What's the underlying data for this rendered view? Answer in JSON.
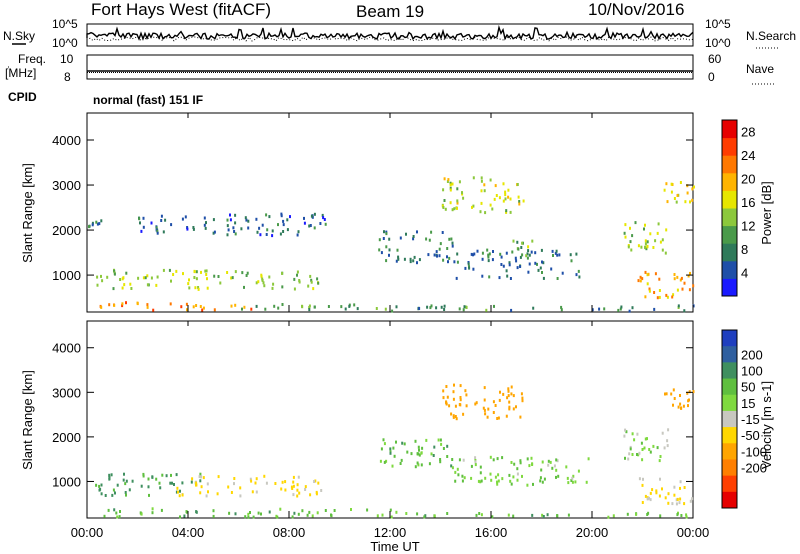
{
  "header": {
    "station": "Fort Hays West (fitACF)",
    "beam": "Beam 19",
    "date": "10/Nov/2016",
    "mode": "normal (fast) 151 IF"
  },
  "top_panels": {
    "nsky_label": "N.Sky",
    "nsearch_label": "N.Search",
    "noise_ticks_left": [
      "10^5",
      "10^0"
    ],
    "noise_ticks_right": [
      "10^5",
      "10^0"
    ],
    "freq_label": "Freq.",
    "freq_unit": "[MHz]",
    "freq_ticks": [
      "10",
      "8"
    ],
    "nave_label": "Nave",
    "nave_ticks": [
      "60",
      "0"
    ],
    "cpid_label": "CPID"
  },
  "chart_data": [
    {
      "type": "heatmap",
      "name": "power",
      "xlabel": "Time UT",
      "ylabel": "Slant Range [km]",
      "x_ticks": [
        "00:00",
        "04:00",
        "08:00",
        "12:00",
        "16:00",
        "20:00",
        "00:00"
      ],
      "xlim_hours": [
        0,
        24
      ],
      "y_ticks": [
        "1000",
        "2000",
        "3000",
        "4000"
      ],
      "ylim": [
        180,
        4600
      ],
      "colorbar": {
        "label": "Power [dB]",
        "ticks": [
          "4",
          "8",
          "12",
          "16",
          "20",
          "24",
          "28"
        ],
        "range": [
          0,
          30
        ],
        "colors": [
          "#1a1aff",
          "#1f4fa8",
          "#2f7a5a",
          "#4a9a4a",
          "#8cc83c",
          "#e6e600",
          "#ffb400",
          "#ff7800",
          "#ff3c00",
          "#e60000"
        ]
      },
      "regions": [
        {
          "t": [
            0.0,
            0.8
          ],
          "r": [
            2100,
            2250
          ],
          "level": 8
        },
        {
          "t": [
            0.3,
            9.2
          ],
          "r": [
            700,
            1150
          ],
          "level": 14
        },
        {
          "t": [
            0.5,
            6.5
          ],
          "r": [
            250,
            420
          ],
          "level": 22
        },
        {
          "t": [
            6.0,
            12.0
          ],
          "r": [
            250,
            380
          ],
          "level": 10
        },
        {
          "t": [
            12.0,
            24.0
          ],
          "r": [
            230,
            350
          ],
          "level": 9
        },
        {
          "t": [
            2.0,
            9.5
          ],
          "r": [
            1900,
            2400
          ],
          "level": 6
        },
        {
          "t": [
            11.5,
            14.5
          ],
          "r": [
            1300,
            2000
          ],
          "level": 7
        },
        {
          "t": [
            14.0,
            17.3
          ],
          "r": [
            2400,
            3200
          ],
          "level": 15
        },
        {
          "t": [
            14.5,
            19.5
          ],
          "r": [
            950,
            1600
          ],
          "level": 7
        },
        {
          "t": [
            16.8,
            17.6
          ],
          "r": [
            1400,
            1800
          ],
          "level": 12
        },
        {
          "t": [
            21.2,
            23.0
          ],
          "r": [
            1500,
            2200
          ],
          "level": 14
        },
        {
          "t": [
            22.8,
            24.0
          ],
          "r": [
            2600,
            3100
          ],
          "level": 16
        },
        {
          "t": [
            21.8,
            24.0
          ],
          "r": [
            500,
            1100
          ],
          "level": 20
        }
      ]
    },
    {
      "type": "heatmap",
      "name": "velocity",
      "xlabel": "Time UT",
      "ylabel": "Slant Range [km]",
      "x_ticks": [
        "00:00",
        "04:00",
        "08:00",
        "12:00",
        "16:00",
        "20:00",
        "00:00"
      ],
      "xlim_hours": [
        0,
        24
      ],
      "y_ticks": [
        "1000",
        "2000",
        "3000",
        "4000"
      ],
      "ylim": [
        180,
        4600
      ],
      "colorbar": {
        "label": "Velocity [m s-1]",
        "ticks": [
          "200",
          "100",
          "50",
          "15",
          "-15",
          "-50",
          "-100",
          "-200"
        ],
        "colors": [
          "#1f3fbf",
          "#2f5f9f",
          "#3f8f5f",
          "#5fbf3f",
          "#7fd93f",
          "#c8c8c0",
          "#ffd700",
          "#ffa500",
          "#ff7f00",
          "#ff3f00",
          "#e60000"
        ]
      },
      "regions": [
        {
          "t": [
            0.3,
            4.5
          ],
          "r": [
            700,
            1200
          ],
          "velocity": 60
        },
        {
          "t": [
            3.5,
            9.3
          ],
          "r": [
            700,
            1150
          ],
          "velocity": -60
        },
        {
          "t": [
            0.5,
            12.0
          ],
          "r": [
            230,
            420
          ],
          "velocity": 30
        },
        {
          "t": [
            12.0,
            24.0
          ],
          "r": [
            230,
            350
          ],
          "velocity": 25
        },
        {
          "t": [
            14.0,
            17.3
          ],
          "r": [
            2400,
            3200
          ],
          "velocity": -150
        },
        {
          "t": [
            14.5,
            20.0
          ],
          "r": [
            950,
            1600
          ],
          "velocity": 5
        },
        {
          "t": [
            11.5,
            14.5
          ],
          "r": [
            1300,
            2000
          ],
          "velocity": 30
        },
        {
          "t": [
            21.2,
            23.0
          ],
          "r": [
            1500,
            2200
          ],
          "velocity": 0
        },
        {
          "t": [
            21.8,
            24.0
          ],
          "r": [
            500,
            1100
          ],
          "velocity": -60
        },
        {
          "t": [
            22.8,
            24.0
          ],
          "r": [
            2600,
            3100
          ],
          "velocity": -150
        }
      ]
    }
  ]
}
